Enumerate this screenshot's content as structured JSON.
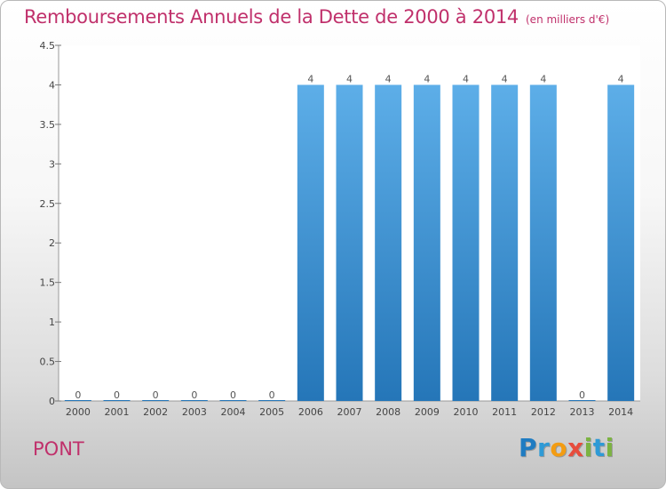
{
  "header": {
    "title": "Remboursements Annuels de la Dette de 2000 à 2014",
    "unit": "(en milliers d'€)"
  },
  "footer": {
    "commune": "PONT",
    "logo_letters": [
      "P",
      "r",
      "o",
      "x",
      "i",
      "t",
      "i"
    ]
  },
  "colors": {
    "title": "#c0306b",
    "bar_top": "#5daee8",
    "bar_bottom": "#2576b8",
    "logo": [
      "#1f7cc2",
      "#2e9ad6",
      "#f39c12",
      "#e74c3c",
      "#7cb342",
      "#2e9ad6",
      "#7cb342"
    ]
  },
  "chart_data": {
    "type": "bar",
    "title": "Remboursements Annuels de la Dette de 2000 à 2014",
    "xlabel": "",
    "ylabel": "",
    "categories": [
      "2000",
      "2001",
      "2002",
      "2003",
      "2004",
      "2005",
      "2006",
      "2007",
      "2008",
      "2009",
      "2010",
      "2011",
      "2012",
      "2013",
      "2014"
    ],
    "values": [
      0,
      0,
      0,
      0,
      0,
      0,
      4,
      4,
      4,
      4,
      4,
      4,
      4,
      0,
      4
    ],
    "data_labels": [
      "0",
      "0",
      "0",
      "0",
      "0",
      "0",
      "4",
      "4",
      "4",
      "4",
      "4",
      "4",
      "4",
      "0",
      "4"
    ],
    "yticks": [
      0,
      0.5,
      1,
      1.5,
      2,
      2.5,
      3,
      3.5,
      4,
      4.5
    ],
    "ytick_labels": [
      "0",
      "0.5",
      "1",
      "1.5",
      "2",
      "2.5",
      "3",
      "3.5",
      "4",
      "4.5"
    ],
    "ylim": [
      0,
      4.5
    ],
    "grid": false,
    "legend": "none"
  }
}
